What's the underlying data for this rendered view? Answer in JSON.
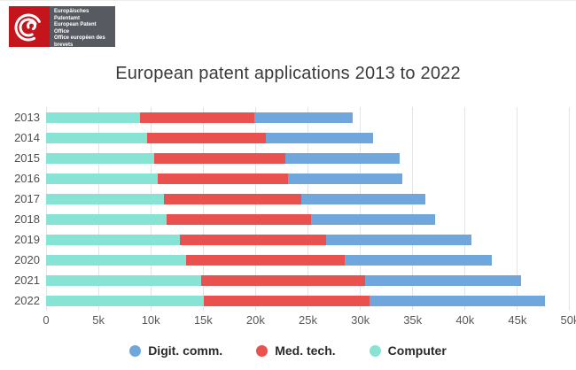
{
  "logo": {
    "red_color": "#c4151c",
    "slate_color": "#575b61",
    "lines": [
      "Europäisches Patentamt",
      "European Patent Office",
      "Office européen des brevets"
    ]
  },
  "title": "European patent applications 2013 to 2022",
  "chart_data": {
    "type": "bar",
    "orientation": "horizontal",
    "stacked": true,
    "title": "European patent applications 2013 to 2022",
    "categories": [
      "2013",
      "2014",
      "2015",
      "2016",
      "2017",
      "2018",
      "2019",
      "2020",
      "2021",
      "2022"
    ],
    "series": [
      {
        "name": "Digit. comm.",
        "color": "#6fa6dc",
        "values": [
          9400,
          10300,
          10900,
          11000,
          11900,
          11900,
          13900,
          14000,
          14900,
          16800
        ]
      },
      {
        "name": "Med. tech.",
        "color": "#e9514f",
        "values": [
          10900,
          11300,
          12600,
          12400,
          13100,
          13800,
          14000,
          15200,
          15700,
          15800
        ]
      },
      {
        "name": "Computer",
        "color": "#87e3d3",
        "values": [
          9000,
          9700,
          10300,
          10700,
          11300,
          11500,
          12800,
          13400,
          14800,
          15100
        ]
      }
    ],
    "stack_order": [
      "Computer",
      "Med. tech.",
      "Digit. comm."
    ],
    "totals": [
      29300,
      31300,
      33800,
      34100,
      36300,
      37200,
      40700,
      42600,
      45400,
      47700
    ],
    "xlim": [
      0,
      50000
    ],
    "x_ticks": [
      "0",
      "5k",
      "10k",
      "15k",
      "20k",
      "25k",
      "30k",
      "35k",
      "40k",
      "45k",
      "50k"
    ],
    "grid": true,
    "gridline_color": "#e4e4e4",
    "legend_position": "bottom"
  }
}
